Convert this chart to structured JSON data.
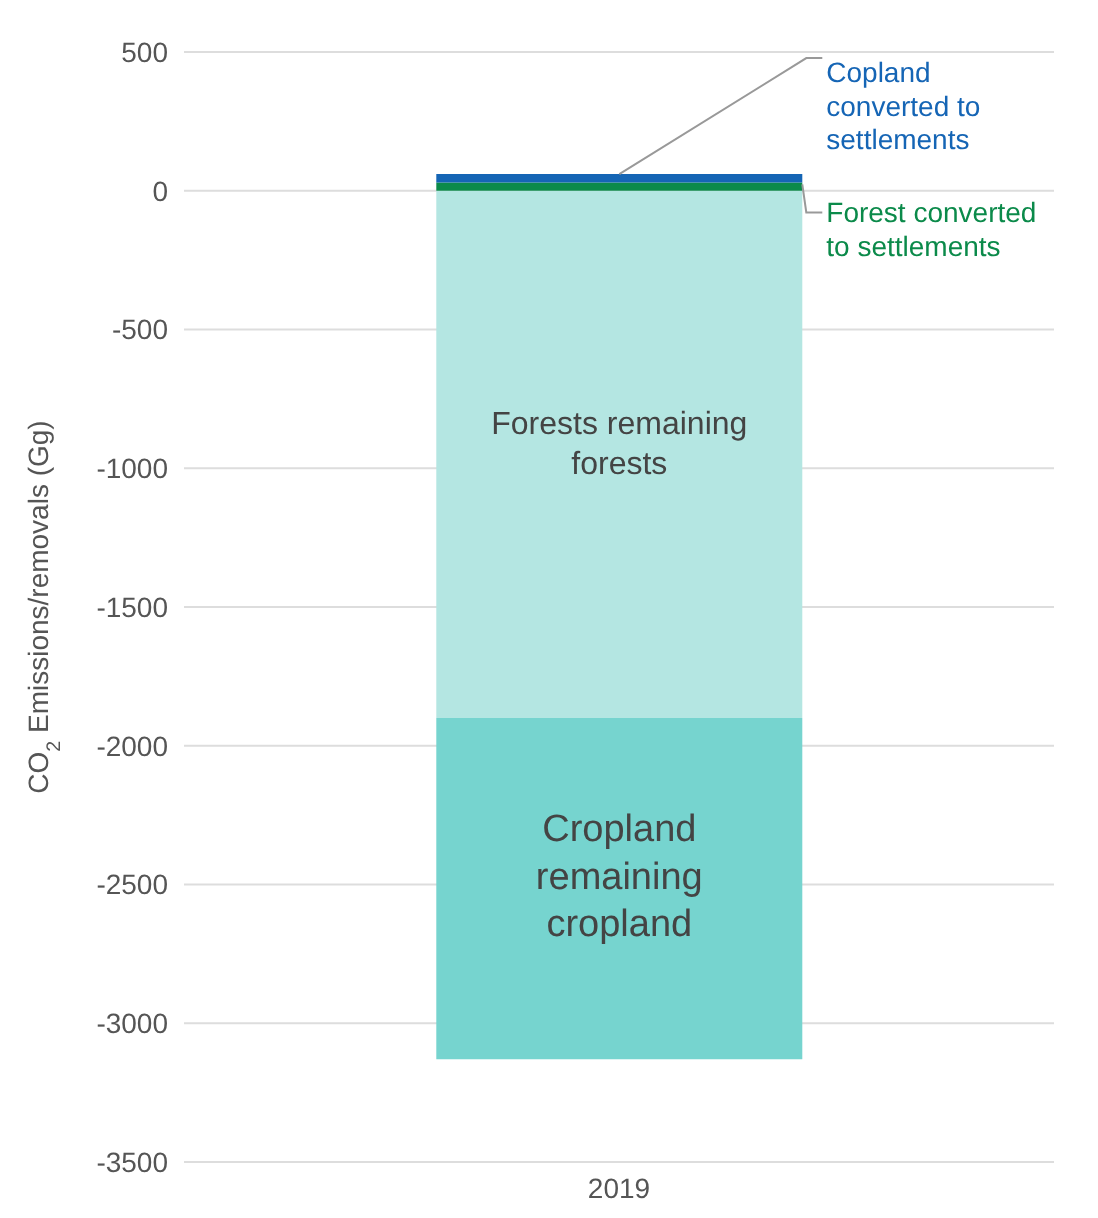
{
  "chart_data": {
    "type": "bar",
    "stacked": true,
    "categories": [
      "2019"
    ],
    "ylabel": "CO$_{2}$ Emissions/removals (Gg)",
    "ylim": [
      -3500,
      500
    ],
    "yticks": [
      -3500,
      -3000,
      -2500,
      -2000,
      -1500,
      -1000,
      -500,
      0,
      500
    ],
    "grid": "y",
    "legend": false,
    "series": [
      {
        "name": "Forests remaining forests",
        "color": "#b4e6e2",
        "values": [
          -1900
        ]
      },
      {
        "name": "Cropland remaining cropland",
        "color": "#76d4cf",
        "values": [
          -1230
        ]
      },
      {
        "name": "Forest converted to settlements",
        "color": "#0b8a4a",
        "values": [
          30
        ]
      },
      {
        "name": "Copland converted to settlements",
        "color": "#1565b5",
        "values": [
          30
        ]
      }
    ]
  }
}
